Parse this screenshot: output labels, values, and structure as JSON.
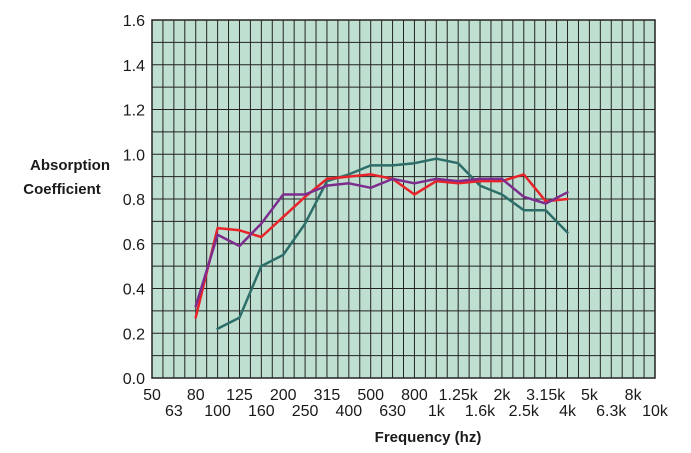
{
  "chart_data": {
    "type": "line",
    "title": "",
    "ylabel_lines": [
      "Absorption",
      "Coefficient"
    ],
    "xlabel": "Frequency (hz)",
    "ylim": [
      0.0,
      1.6
    ],
    "yticks": [
      "0.0",
      "0.2",
      "0.4",
      "0.6",
      "0.8",
      "1.0",
      "1.2",
      "1.4",
      "1.6"
    ],
    "categories": [
      "50",
      "63",
      "80",
      "100",
      "125",
      "160",
      "200",
      "250",
      "315",
      "400",
      "500",
      "630",
      "800",
      "1k",
      "1.25k",
      "1.6k",
      "2k",
      "2.5k",
      "3.15k",
      "4k",
      "5k",
      "6.3k",
      "8k",
      "10k"
    ],
    "grid": true,
    "plot_background": "#bfe0d0",
    "grid_color": "#222222",
    "series": [
      {
        "color": "#2e6e6a",
        "values": [
          null,
          null,
          null,
          0.22,
          0.27,
          0.5,
          0.55,
          0.69,
          0.88,
          0.91,
          0.95,
          0.95,
          0.96,
          0.98,
          0.96,
          0.86,
          0.82,
          0.75,
          0.75,
          0.65,
          null,
          null,
          null,
          null
        ]
      },
      {
        "color": "#e8232a",
        "values": [
          null,
          null,
          0.27,
          0.67,
          0.66,
          0.63,
          0.72,
          0.81,
          0.89,
          0.9,
          0.91,
          0.89,
          0.82,
          0.88,
          0.87,
          0.88,
          0.88,
          0.91,
          0.79,
          0.8,
          null,
          null,
          null,
          null
        ]
      },
      {
        "color": "#7d2d8e",
        "values": [
          null,
          null,
          0.32,
          0.64,
          0.59,
          0.69,
          0.82,
          0.82,
          0.86,
          0.87,
          0.85,
          0.89,
          0.87,
          0.89,
          0.88,
          0.89,
          0.89,
          0.81,
          0.78,
          0.83,
          null,
          null,
          null,
          null
        ]
      }
    ]
  }
}
